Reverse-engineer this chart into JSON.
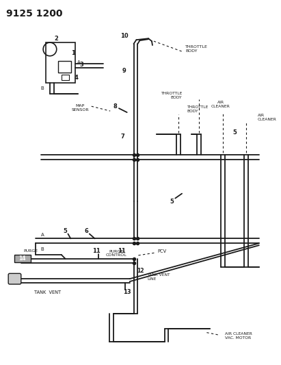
{
  "title": "9125 1200",
  "bg": "#ffffff",
  "lc": "#1a1a1a",
  "tc": "#1a1a1a",
  "figsize": [
    4.11,
    5.33
  ],
  "dpi": 100,
  "labels": {
    "throttle_body": "THROTTLE\nBODY",
    "air_cleaner": "AIR\nCLEANER",
    "map_sensor": "MAP\nSENSOR",
    "purge": "PURGE",
    "purge_control": "PURGE\nCONTROL",
    "pcv": "PCV",
    "tank_vent_line": "TANK VENT\nLINE",
    "tank_vent": "TANK  VENT",
    "air_cleaner_vac_motor": "AIR CLEANER\nVAC. MOTOR"
  }
}
